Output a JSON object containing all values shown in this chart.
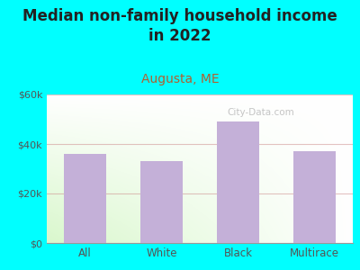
{
  "title": "Median non-family household income\nin 2022",
  "subtitle": "Augusta, ME",
  "categories": [
    "All",
    "White",
    "Black",
    "Multirace"
  ],
  "values": [
    36000,
    33000,
    49000,
    37000
  ],
  "bar_color": "#c4b0d8",
  "title_fontsize": 12,
  "title_color": "#222222",
  "subtitle_fontsize": 10,
  "subtitle_color": "#b06030",
  "tick_label_color": "#555555",
  "outer_bg_color": "#00ffff",
  "watermark": "City-Data.com",
  "ylim": [
    0,
    60000
  ],
  "yticks": [
    0,
    20000,
    40000,
    60000
  ],
  "ytick_labels": [
    "$0",
    "$20k",
    "$40k",
    "$60k"
  ],
  "grid_color": "#cc8888",
  "grid_alpha": 0.5,
  "grid_linewidth": 0.8
}
